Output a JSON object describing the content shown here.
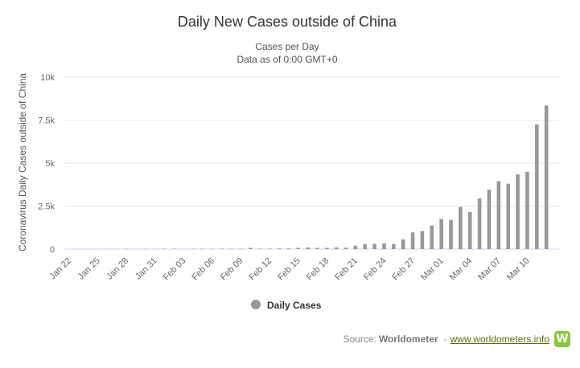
{
  "chart_data": {
    "type": "bar",
    "title": "Daily New Cases outside of China",
    "subtitle_line1": "Cases per Day",
    "subtitle_line2": "Data as of 0:00 GMT+0",
    "ylabel": "Coronavirus Daily Cases outside of China",
    "xlabel": "",
    "ylim": [
      0,
      10000
    ],
    "yticks": [
      0,
      2500,
      5000,
      7500,
      10000
    ],
    "ytick_labels": [
      "0",
      "2.5k",
      "5k",
      "7.5k",
      "10k"
    ],
    "grid": "horizontal",
    "legend_position": "bottom-center",
    "series": [
      {
        "name": "Daily Cases",
        "color": "#999999"
      }
    ],
    "categories": [
      "Jan 22",
      "Jan 23",
      "Jan 24",
      "Jan 25",
      "Jan 26",
      "Jan 27",
      "Jan 28",
      "Jan 29",
      "Jan 30",
      "Jan 31",
      "Feb 01",
      "Feb 02",
      "Feb 03",
      "Feb 04",
      "Feb 05",
      "Feb 06",
      "Feb 07",
      "Feb 08",
      "Feb 09",
      "Feb 10",
      "Feb 11",
      "Feb 12",
      "Feb 13",
      "Feb 14",
      "Feb 15",
      "Feb 16",
      "Feb 17",
      "Feb 18",
      "Feb 19",
      "Feb 20",
      "Feb 21",
      "Feb 22",
      "Feb 23",
      "Feb 24",
      "Feb 25",
      "Feb 26",
      "Feb 27",
      "Feb 28",
      "Feb 29",
      "Mar 01",
      "Mar 02",
      "Mar 03",
      "Mar 04",
      "Mar 05",
      "Mar 06",
      "Mar 07",
      "Mar 08",
      "Mar 09",
      "Mar 10",
      "Mar 11",
      "Mar 12",
      "Mar 13"
    ],
    "tick_labels": [
      "Jan 22",
      "Jan 25",
      "Jan 28",
      "Jan 31",
      "Feb 03",
      "Feb 06",
      "Feb 09",
      "Feb 12",
      "Feb 15",
      "Feb 18",
      "Feb 21",
      "Feb 24",
      "Feb 27",
      "Mar 01",
      "Mar 04",
      "Mar 07",
      "Mar 10"
    ],
    "values": [
      2,
      4,
      5,
      8,
      10,
      10,
      15,
      8,
      12,
      10,
      20,
      25,
      10,
      20,
      20,
      15,
      25,
      20,
      20,
      70,
      30,
      30,
      40,
      40,
      70,
      90,
      70,
      70,
      100,
      80,
      200,
      280,
      310,
      330,
      300,
      560,
      970,
      1050,
      1370,
      1750,
      1700,
      2450,
      2150,
      2950,
      3450,
      3950,
      3800,
      4350,
      4500,
      7250,
      8350,
      0
    ]
  },
  "credit": {
    "source_prefix": "Source:",
    "source_name": "Worldometer",
    "separator": "-",
    "link_text": "www.worldometers.info",
    "logo_letter": "W"
  }
}
